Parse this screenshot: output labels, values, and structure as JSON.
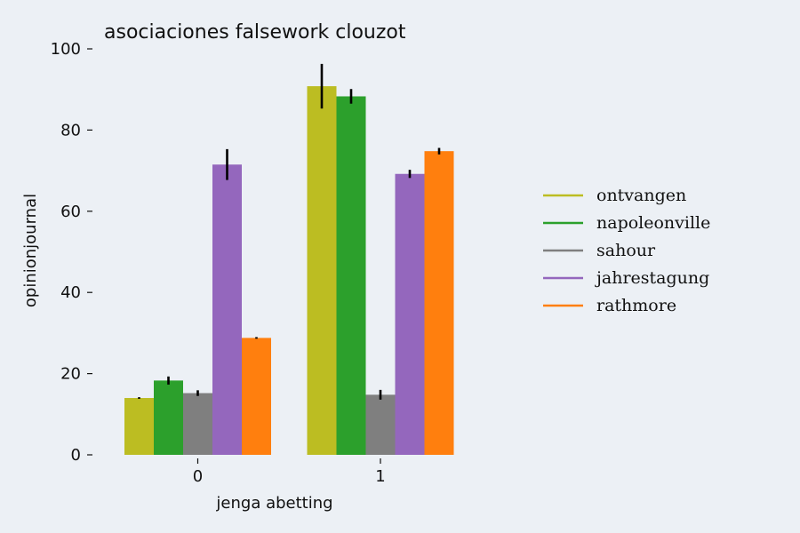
{
  "chart_data": {
    "type": "bar",
    "title": "asociaciones falsework clouzot",
    "xlabel": "jenga abetting",
    "ylabel": "opinionjournal",
    "categories": [
      "0",
      "1"
    ],
    "ylim": [
      0,
      100
    ],
    "yticks": [
      0,
      20,
      40,
      60,
      80,
      100
    ],
    "grid": false,
    "legend_placement": "right",
    "series": [
      {
        "name": "ontvangen",
        "color": "#bcbd22",
        "values": [
          14.0,
          90.8
        ],
        "errors": [
          0.2,
          5.5
        ]
      },
      {
        "name": "napoleonville",
        "color": "#2ca02c",
        "values": [
          18.3,
          88.3
        ],
        "errors": [
          1.0,
          1.8
        ]
      },
      {
        "name": "sahour",
        "color": "#7f7f7f",
        "values": [
          15.2,
          14.8
        ],
        "errors": [
          0.7,
          1.2
        ]
      },
      {
        "name": "jahrestagung",
        "color": "#9467bd",
        "values": [
          71.5,
          69.2
        ],
        "errors": [
          3.8,
          1.0
        ]
      },
      {
        "name": "rathmore",
        "color": "#ff7f0e",
        "values": [
          28.8,
          74.8
        ],
        "errors": [
          0.2,
          0.8
        ]
      }
    ]
  }
}
